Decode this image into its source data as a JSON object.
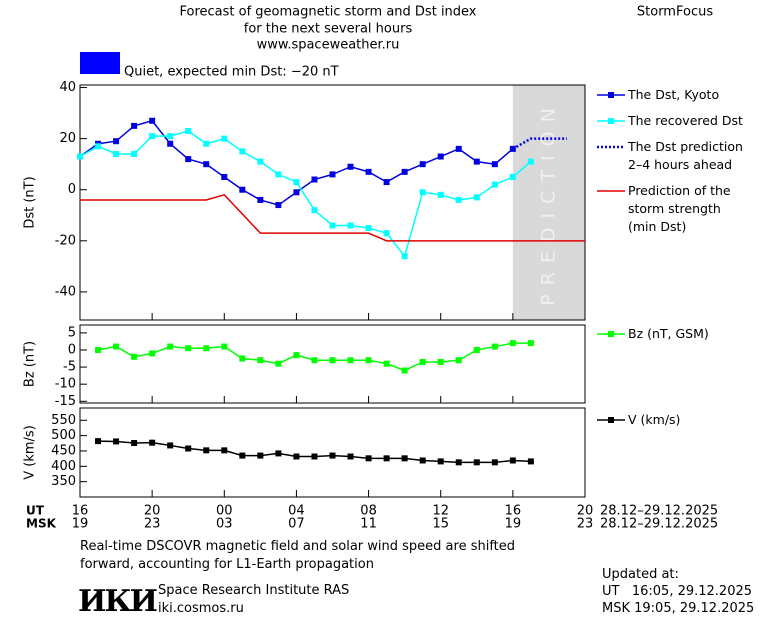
{
  "header": {
    "title_lines": [
      "Forecast of geomagnetic storm and Dst index",
      "for the next several hours",
      "www.spaceweather.ru"
    ],
    "brand": "StormFocus"
  },
  "status": {
    "color": "#0000ff",
    "text": "Quiet, expected min Dst: −20 nT"
  },
  "chart_data": [
    {
      "type": "line",
      "ylabel": "Dst (nT)",
      "xlim": [
        0,
        28
      ],
      "ylim": [
        -51,
        41
      ],
      "yticks": [
        40,
        20,
        0,
        -20,
        -40
      ],
      "prediction_band": {
        "label": "PREDICTION",
        "x": [
          24,
          28
        ],
        "color": "#d9d9d9"
      },
      "series": [
        {
          "name": "The Dst, Kyoto",
          "color": "#0000e0",
          "marker": "square",
          "x": [
            0,
            1,
            2,
            3,
            4,
            5,
            6,
            7,
            8,
            9,
            10,
            11,
            12,
            13,
            14,
            15,
            16,
            17,
            18,
            19,
            20,
            21,
            22,
            23,
            24
          ],
          "values": [
            13,
            18,
            19,
            25,
            27,
            18,
            12,
            10,
            5,
            0,
            -4,
            -6,
            -1,
            4,
            6,
            9,
            7,
            3,
            7,
            10,
            13,
            16,
            11,
            10,
            16
          ]
        },
        {
          "name": "The recovered Dst",
          "color": "#00ffff",
          "marker": "square",
          "x": [
            0,
            1,
            2,
            3,
            4,
            5,
            6,
            7,
            8,
            9,
            10,
            11,
            12,
            13,
            14,
            15,
            16,
            17,
            18,
            19,
            20,
            21,
            22,
            23,
            24,
            25
          ],
          "values": [
            13,
            17,
            14,
            14,
            21,
            21,
            23,
            18,
            20,
            15,
            11,
            6,
            3,
            -8,
            -14,
            -14,
            -15,
            -17,
            -26,
            -1,
            -2,
            -4,
            -3,
            2,
            5,
            11
          ]
        },
        {
          "name": "The Dst prediction\n2–4 hours ahead",
          "color": "#0000e0",
          "dash": "dotted",
          "x": [
            24,
            25,
            27
          ],
          "values": [
            16,
            20,
            20
          ]
        },
        {
          "name": "Prediction of the\nstorm strength\n(min Dst)",
          "color": "#e00000",
          "x": [
            0,
            7,
            8,
            10,
            16,
            17,
            28
          ],
          "values": [
            -4,
            -4,
            -2,
            -17,
            -17,
            -20,
            -20
          ]
        }
      ]
    },
    {
      "type": "line",
      "ylabel": "Bz (nT)",
      "xlim": [
        0,
        28
      ],
      "ylim": [
        -15.5,
        7.3
      ],
      "yticks": [
        5,
        0,
        -5,
        -10,
        -15
      ],
      "series": [
        {
          "name": "Bz (nT, GSM)",
          "color": "#00ff00",
          "marker": "square",
          "x": [
            1,
            2,
            3,
            4,
            5,
            6,
            7,
            8,
            9,
            10,
            11,
            12,
            13,
            14,
            15,
            16,
            17,
            18,
            19,
            20,
            21,
            22,
            23,
            24,
            25
          ],
          "values": [
            0,
            1,
            -2,
            -1,
            1,
            0.5,
            0.5,
            1,
            -2.5,
            -3,
            -4,
            -1.5,
            -3,
            -3,
            -3,
            -3,
            -4,
            -6,
            -3.5,
            -3.5,
            -3,
            0,
            1,
            2,
            2
          ]
        }
      ]
    },
    {
      "type": "line",
      "ylabel": "V (km/s)",
      "xlim": [
        0,
        28
      ],
      "ylim": [
        300,
        590
      ],
      "yticks": [
        550,
        500,
        450,
        400,
        350
      ],
      "xlabel": "UT",
      "x2label": "MSK",
      "x_range_label": "28.12–29.12.2025",
      "x2_range_label": "28.12–29.12.2025",
      "xticks": [
        {
          "value": 0,
          "label": "16"
        },
        {
          "value": 4,
          "label": "20"
        },
        {
          "value": 8,
          "label": "00"
        },
        {
          "value": 12,
          "label": "04"
        },
        {
          "value": 16,
          "label": "08"
        },
        {
          "value": 20,
          "label": "12"
        },
        {
          "value": 24,
          "label": "16"
        },
        {
          "value": 28,
          "label": "20"
        }
      ],
      "x2ticks": [
        {
          "value": 0,
          "label": "19"
        },
        {
          "value": 4,
          "label": "23"
        },
        {
          "value": 8,
          "label": "03"
        },
        {
          "value": 12,
          "label": "07"
        },
        {
          "value": 16,
          "label": "11"
        },
        {
          "value": 20,
          "label": "15"
        },
        {
          "value": 24,
          "label": "19"
        },
        {
          "value": 28,
          "label": "23"
        }
      ],
      "series": [
        {
          "name": "V (km/s)",
          "color": "#000000",
          "marker": "square",
          "x": [
            1,
            2,
            3,
            4,
            5,
            6,
            7,
            8,
            9,
            10,
            11,
            12,
            13,
            14,
            15,
            16,
            17,
            18,
            19,
            20,
            21,
            22,
            23,
            24,
            25
          ],
          "values": [
            482,
            481,
            476,
            477,
            468,
            458,
            452,
            452,
            435,
            435,
            442,
            432,
            432,
            435,
            432,
            426,
            426,
            426,
            419,
            416,
            413,
            413,
            413,
            419,
            416
          ]
        }
      ]
    }
  ],
  "footer": {
    "note_lines": [
      "Real-time DSCOVR magnetic field and solar wind speed are shifted",
      "forward, accounting for L1-Earth propagation"
    ],
    "logo": "ИКИ",
    "institute": "Space Research Institute RAS",
    "website": "iki.cosmos.ru",
    "updated_label": "Updated at:",
    "updated_ut": "UT   16:05, 29.12.2025",
    "updated_msk": "MSK 19:05, 29.12.2025"
  }
}
